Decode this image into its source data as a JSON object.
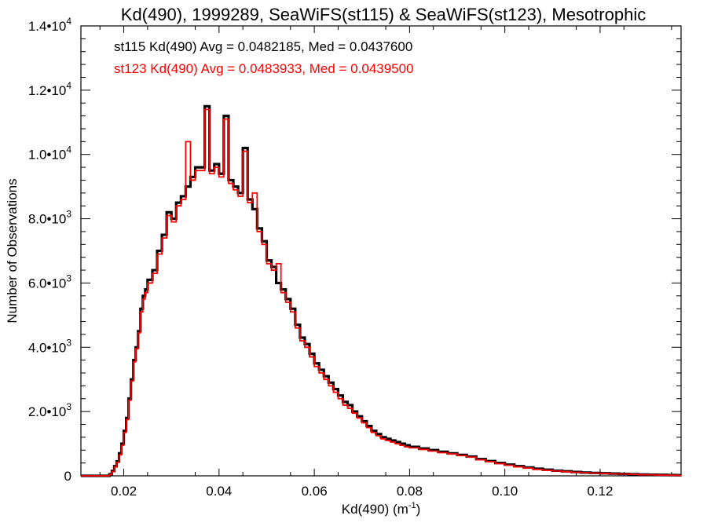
{
  "chart_data": {
    "type": "histogram",
    "title": "Kd(490), 1999289, SeaWiFS(st115) & SeaWiFS(st123), Mesotrophic",
    "xlabel": "Kd(490) (m",
    "xlabel_sup": "-1",
    "xlabel_close": ")",
    "ylabel": "Number of Observations",
    "xlim": [
      0.011,
      0.137
    ],
    "ylim": [
      0,
      14000
    ],
    "xticks": [
      {
        "value": 0.02,
        "label": "0.02"
      },
      {
        "value": 0.04,
        "label": "0.04"
      },
      {
        "value": 0.06,
        "label": "0.06"
      },
      {
        "value": 0.08,
        "label": "0.08"
      },
      {
        "value": 0.1,
        "label": "0.10"
      },
      {
        "value": 0.12,
        "label": "0.12"
      }
    ],
    "yticks": [
      {
        "value": 0,
        "label": "0",
        "sup": ""
      },
      {
        "value": 2000,
        "label": "2.0•10",
        "sup": "3"
      },
      {
        "value": 4000,
        "label": "4.0•10",
        "sup": "3"
      },
      {
        "value": 6000,
        "label": "6.0•10",
        "sup": "3"
      },
      {
        "value": 8000,
        "label": "8.0•10",
        "sup": "3"
      },
      {
        "value": 10000,
        "label": "1.0•10",
        "sup": "4"
      },
      {
        "value": 12000,
        "label": "1.2•10",
        "sup": "4"
      },
      {
        "value": 14000,
        "label": "1.4•10",
        "sup": "4"
      }
    ],
    "grid": false,
    "annotations": [
      {
        "text": "st115 Kd(490) Avg = 0.0482185, Med = 0.0437600",
        "color": "#000000"
      },
      {
        "text": "st123 Kd(490) Avg = 0.0483933, Med = 0.0439500",
        "color": "#ff0000"
      }
    ],
    "series": [
      {
        "color": "#000000",
        "points": [
          [
            0.011,
            0
          ],
          [
            0.016,
            0
          ],
          [
            0.017,
            50
          ],
          [
            0.0175,
            150
          ],
          [
            0.018,
            300
          ],
          [
            0.0185,
            450
          ],
          [
            0.019,
            700
          ],
          [
            0.0195,
            1000
          ],
          [
            0.02,
            1400
          ],
          [
            0.0205,
            1800
          ],
          [
            0.021,
            2400
          ],
          [
            0.0215,
            3000
          ],
          [
            0.022,
            3600
          ],
          [
            0.0225,
            4000
          ],
          [
            0.023,
            4500
          ],
          [
            0.0235,
            5200
          ],
          [
            0.024,
            5600
          ],
          [
            0.0245,
            5800
          ],
          [
            0.025,
            6100
          ],
          [
            0.026,
            6400
          ],
          [
            0.027,
            7000
          ],
          [
            0.028,
            7500
          ],
          [
            0.029,
            8200
          ],
          [
            0.03,
            8000
          ],
          [
            0.031,
            8500
          ],
          [
            0.032,
            8700
          ],
          [
            0.033,
            9000
          ],
          [
            0.034,
            9300
          ],
          [
            0.035,
            9600
          ],
          [
            0.036,
            9600
          ],
          [
            0.037,
            11500
          ],
          [
            0.038,
            9500
          ],
          [
            0.039,
            9700
          ],
          [
            0.04,
            9400
          ],
          [
            0.041,
            11200
          ],
          [
            0.042,
            9200
          ],
          [
            0.043,
            9000
          ],
          [
            0.044,
            8800
          ],
          [
            0.045,
            10200
          ],
          [
            0.046,
            8600
          ],
          [
            0.047,
            8300
          ],
          [
            0.048,
            7700
          ],
          [
            0.049,
            7300
          ],
          [
            0.05,
            6700
          ],
          [
            0.051,
            6500
          ],
          [
            0.052,
            6000
          ],
          [
            0.053,
            5800
          ],
          [
            0.054,
            5500
          ],
          [
            0.055,
            5200
          ],
          [
            0.056,
            4700
          ],
          [
            0.057,
            4300
          ],
          [
            0.058,
            4100
          ],
          [
            0.059,
            3800
          ],
          [
            0.06,
            3500
          ],
          [
            0.061,
            3300
          ],
          [
            0.062,
            3100
          ],
          [
            0.063,
            2900
          ],
          [
            0.064,
            2700
          ],
          [
            0.065,
            2500
          ],
          [
            0.066,
            2300
          ],
          [
            0.067,
            2200
          ],
          [
            0.068,
            2000
          ],
          [
            0.069,
            1850
          ],
          [
            0.07,
            1700
          ],
          [
            0.071,
            1550
          ],
          [
            0.072,
            1400
          ],
          [
            0.073,
            1300
          ],
          [
            0.074,
            1200
          ],
          [
            0.075,
            1150
          ],
          [
            0.076,
            1100
          ],
          [
            0.077,
            1050
          ],
          [
            0.078,
            1000
          ],
          [
            0.079,
            950
          ],
          [
            0.08,
            900
          ],
          [
            0.082,
            850
          ],
          [
            0.084,
            800
          ],
          [
            0.086,
            750
          ],
          [
            0.088,
            700
          ],
          [
            0.09,
            650
          ],
          [
            0.092,
            600
          ],
          [
            0.094,
            520
          ],
          [
            0.096,
            460
          ],
          [
            0.098,
            400
          ],
          [
            0.1,
            350
          ],
          [
            0.102,
            300
          ],
          [
            0.104,
            260
          ],
          [
            0.106,
            220
          ],
          [
            0.108,
            190
          ],
          [
            0.11,
            160
          ],
          [
            0.112,
            140
          ],
          [
            0.114,
            120
          ],
          [
            0.116,
            100
          ],
          [
            0.118,
            90
          ],
          [
            0.12,
            80
          ],
          [
            0.122,
            70
          ],
          [
            0.124,
            60
          ],
          [
            0.126,
            50
          ],
          [
            0.128,
            40
          ],
          [
            0.13,
            35
          ],
          [
            0.132,
            30
          ],
          [
            0.134,
            25
          ],
          [
            0.136,
            20
          ]
        ]
      },
      {
        "color": "#ff0000",
        "points": [
          [
            0.011,
            0
          ],
          [
            0.016,
            0
          ],
          [
            0.017,
            40
          ],
          [
            0.0175,
            130
          ],
          [
            0.018,
            280
          ],
          [
            0.0185,
            420
          ],
          [
            0.019,
            650
          ],
          [
            0.0195,
            950
          ],
          [
            0.02,
            1350
          ],
          [
            0.0205,
            1750
          ],
          [
            0.021,
            2350
          ],
          [
            0.0215,
            2950
          ],
          [
            0.022,
            3550
          ],
          [
            0.0225,
            3950
          ],
          [
            0.023,
            4450
          ],
          [
            0.0235,
            5100
          ],
          [
            0.024,
            5500
          ],
          [
            0.0245,
            5700
          ],
          [
            0.025,
            6000
          ],
          [
            0.026,
            6300
          ],
          [
            0.027,
            6900
          ],
          [
            0.028,
            7400
          ],
          [
            0.029,
            8100
          ],
          [
            0.03,
            7900
          ],
          [
            0.031,
            8400
          ],
          [
            0.032,
            8600
          ],
          [
            0.033,
            10400
          ],
          [
            0.034,
            9200
          ],
          [
            0.035,
            9500
          ],
          [
            0.036,
            9500
          ],
          [
            0.037,
            11400
          ],
          [
            0.038,
            9400
          ],
          [
            0.039,
            9600
          ],
          [
            0.04,
            9300
          ],
          [
            0.041,
            11100
          ],
          [
            0.042,
            9100
          ],
          [
            0.043,
            8900
          ],
          [
            0.044,
            8700
          ],
          [
            0.045,
            10100
          ],
          [
            0.046,
            8500
          ],
          [
            0.047,
            8800
          ],
          [
            0.048,
            7600
          ],
          [
            0.049,
            7200
          ],
          [
            0.05,
            6600
          ],
          [
            0.051,
            6400
          ],
          [
            0.052,
            6600
          ],
          [
            0.053,
            5700
          ],
          [
            0.054,
            5400
          ],
          [
            0.055,
            5100
          ],
          [
            0.056,
            4600
          ],
          [
            0.057,
            4200
          ],
          [
            0.058,
            4000
          ],
          [
            0.059,
            3700
          ],
          [
            0.06,
            3400
          ],
          [
            0.061,
            3200
          ],
          [
            0.062,
            3000
          ],
          [
            0.063,
            2800
          ],
          [
            0.064,
            2600
          ],
          [
            0.065,
            2400
          ],
          [
            0.066,
            2200
          ],
          [
            0.067,
            2100
          ],
          [
            0.068,
            1950
          ],
          [
            0.069,
            1800
          ],
          [
            0.07,
            1650
          ],
          [
            0.071,
            1500
          ],
          [
            0.072,
            1350
          ],
          [
            0.073,
            1250
          ],
          [
            0.074,
            1150
          ],
          [
            0.075,
            1100
          ],
          [
            0.076,
            1050
          ],
          [
            0.077,
            1000
          ],
          [
            0.078,
            950
          ],
          [
            0.079,
            900
          ],
          [
            0.08,
            870
          ],
          [
            0.082,
            820
          ],
          [
            0.084,
            770
          ],
          [
            0.086,
            720
          ],
          [
            0.088,
            680
          ],
          [
            0.09,
            630
          ],
          [
            0.092,
            580
          ],
          [
            0.094,
            500
          ],
          [
            0.096,
            440
          ],
          [
            0.098,
            380
          ],
          [
            0.1,
            330
          ],
          [
            0.102,
            280
          ],
          [
            0.104,
            240
          ],
          [
            0.106,
            200
          ],
          [
            0.108,
            170
          ],
          [
            0.11,
            150
          ],
          [
            0.112,
            130
          ],
          [
            0.114,
            110
          ],
          [
            0.116,
            95
          ],
          [
            0.118,
            85
          ],
          [
            0.12,
            75
          ],
          [
            0.122,
            65
          ],
          [
            0.124,
            55
          ],
          [
            0.126,
            45
          ],
          [
            0.128,
            35
          ],
          [
            0.13,
            30
          ],
          [
            0.132,
            25
          ],
          [
            0.134,
            20
          ],
          [
            0.136,
            15
          ]
        ]
      }
    ]
  }
}
